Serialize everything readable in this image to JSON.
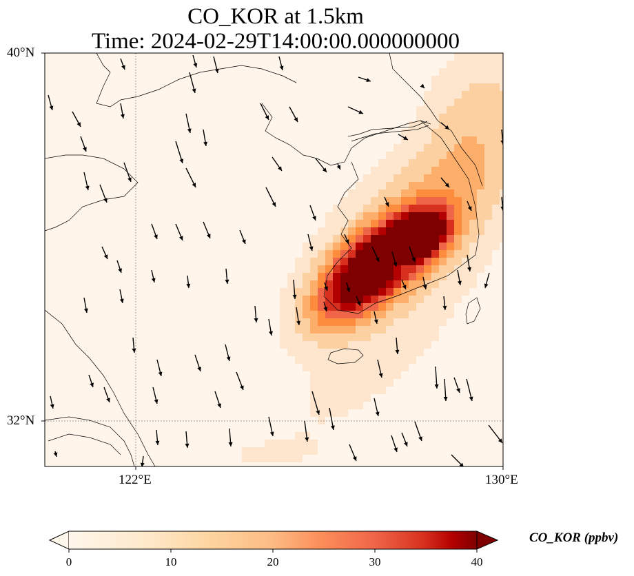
{
  "title": {
    "line1": "CO_KOR at 1.5km",
    "line2": "Time: 2024-02-29T14:00:00.000000000"
  },
  "map": {
    "lat_labels": [
      "40°N",
      "32°N"
    ],
    "lon_labels": [
      "122°E",
      "130°E"
    ],
    "extent": {
      "lon": [
        120,
        130
      ],
      "lat": [
        31,
        40
      ]
    },
    "gridlines": {
      "lon": [
        122,
        130
      ],
      "lat": [
        32,
        40
      ],
      "style": "dotted"
    },
    "features": [
      "coastline",
      "wind-vectors"
    ],
    "plume": {
      "description_colors": [
        "#fff5eb",
        "#fdd9b4",
        "#fda762",
        "#e2552a",
        "#b30000",
        "#7f0000"
      ]
    }
  },
  "colorbar": {
    "label": "CO_KOR (ppbv)",
    "ticks": [
      "0",
      "10",
      "20",
      "30",
      "40"
    ],
    "range": [
      0,
      40
    ],
    "colormap": "OrRd",
    "extend": "both"
  }
}
